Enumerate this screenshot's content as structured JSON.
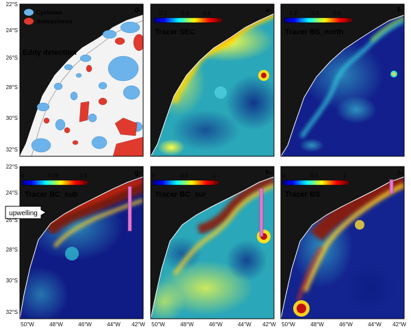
{
  "axes": {
    "lat_ticks": [
      "22°S",
      "24°S",
      "26°S",
      "28°S",
      "30°S",
      "32°S"
    ],
    "lon_ticks": [
      "50°W",
      "48°W",
      "46°W",
      "44°W",
      "42°W"
    ]
  },
  "panels": [
    {
      "id": "d",
      "letter": "d-",
      "title": "Eddy detection",
      "colorbar": null
    },
    {
      "id": "e",
      "letter": "e-",
      "title": "Tracer SEC",
      "colorbar": {
        "ticks": [
          "0.2",
          "0.4",
          "0.6"
        ]
      }
    },
    {
      "id": "f",
      "letter": "f-",
      "title": "Tracer BS_north",
      "colorbar": {
        "ticks": [
          "0.2",
          "0.4",
          "0.6"
        ]
      }
    },
    {
      "id": "g",
      "letter": "g-",
      "title": "Tracer BC_sub",
      "colorbar": {
        "ticks": [
          "0",
          "0.25",
          "0.5"
        ]
      }
    },
    {
      "id": "h",
      "letter": "h-",
      "title": "Tracer BC_sur",
      "colorbar": {
        "ticks": [
          "0",
          "0.5",
          "1"
        ]
      }
    },
    {
      "id": "i",
      "letter": "i-",
      "title": "Tracer BS",
      "colorbar": {
        "ticks": [
          "0",
          "0.5",
          "1"
        ]
      }
    }
  ],
  "legend": {
    "cyclones": "Cyclones",
    "anticyclones": "Anticyclones"
  },
  "annotation": {
    "upwelling": "upwelling"
  },
  "colors": {
    "land": "#151515",
    "cyclone": "#6bb3ea",
    "anticyclone": "#e03a2e",
    "section": "#e27ad0",
    "jet": [
      "#000080",
      "#0000ff",
      "#00ffff",
      "#ffff00",
      "#ff0000",
      "#800000"
    ]
  }
}
